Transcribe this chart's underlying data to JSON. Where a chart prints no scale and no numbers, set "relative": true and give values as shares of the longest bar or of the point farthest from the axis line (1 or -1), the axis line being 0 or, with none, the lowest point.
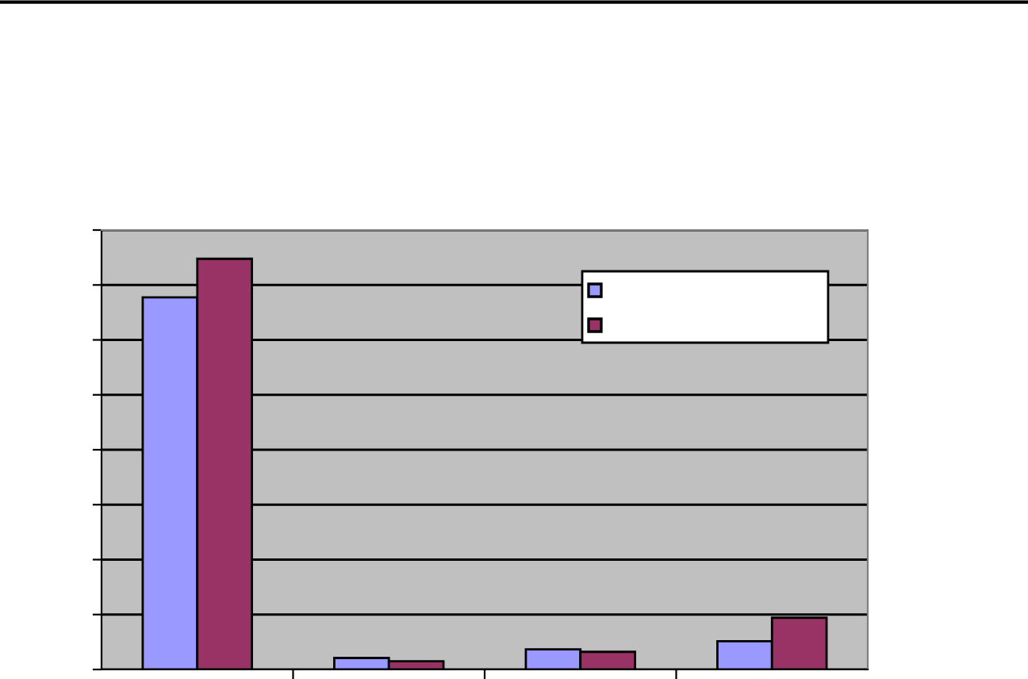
{
  "chart_data": {
    "type": "bar",
    "relative": true,
    "categories": [
      null,
      null,
      null,
      null
    ],
    "series": [
      {
        "color": "#9999ff",
        "values": [
          0.906,
          0.028,
          0.049,
          0.069
        ]
      },
      {
        "color": "#993366",
        "values": [
          1,
          0.02,
          0.043,
          0.126
        ]
      }
    ],
    "grid": "y"
  }
}
